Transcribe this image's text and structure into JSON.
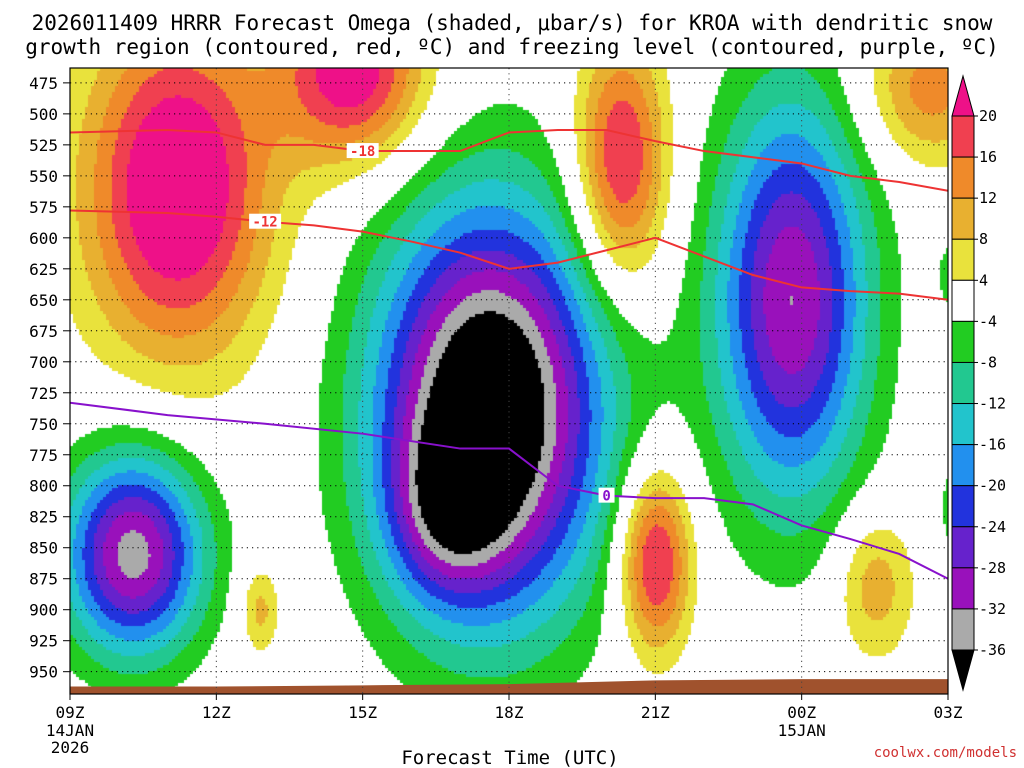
{
  "chart_data": {
    "type": "heatmap",
    "title": "2026011409 HRRR Forecast Omega (shaded, μbar/s) for KROA with dendritic snow growth region (contoured, red, ºC) and freezing level (contoured, purple, ºC)",
    "title_lines": [
      "2026011409 HRRR Forecast Omega (shaded, μbar/s) for KROA with dendritic snow",
      "growth region (contoured, red, ºC) and freezing level (contoured, purple, ºC)"
    ],
    "xlabel": "Forecast Time (UTC)",
    "ylabel": "",
    "credit": "coolwx.com/models",
    "x_ticks": [
      {
        "hour": 0,
        "label": "09Z",
        "sub": [
          "14JAN",
          "2026"
        ]
      },
      {
        "hour": 3,
        "label": "12Z",
        "sub": []
      },
      {
        "hour": 6,
        "label": "15Z",
        "sub": []
      },
      {
        "hour": 9,
        "label": "18Z",
        "sub": []
      },
      {
        "hour": 12,
        "label": "21Z",
        "sub": []
      },
      {
        "hour": 15,
        "label": "00Z",
        "sub": [
          "15JAN"
        ]
      },
      {
        "hour": 18,
        "label": "03Z",
        "sub": []
      }
    ],
    "xlim": [
      0,
      18
    ],
    "y_ticks": [
      475,
      500,
      525,
      550,
      575,
      600,
      625,
      650,
      675,
      700,
      725,
      750,
      775,
      800,
      825,
      850,
      875,
      900,
      925,
      950
    ],
    "ylim_hpa": [
      463,
      968
    ],
    "colorbar": {
      "labels": [
        "20",
        "16",
        "12",
        "8",
        "4",
        "-4",
        "-8",
        "-12",
        "-16",
        "-20",
        "-24",
        "-28",
        "-32",
        "-36"
      ],
      "bins": [
        {
          "lo": 20,
          "hi": 24,
          "color": "#ee1188"
        },
        {
          "lo": 16,
          "hi": 20,
          "color": "#f04050"
        },
        {
          "lo": 12,
          "hi": 16,
          "color": "#ef8a2a"
        },
        {
          "lo": 8,
          "hi": 12,
          "color": "#e8b030"
        },
        {
          "lo": 4,
          "hi": 8,
          "color": "#e9e23c"
        },
        {
          "lo": -4,
          "hi": 4,
          "color": "#ffffff"
        },
        {
          "lo": -8,
          "hi": -4,
          "color": "#22cc22"
        },
        {
          "lo": -12,
          "hi": -8,
          "color": "#22c890"
        },
        {
          "lo": -16,
          "hi": -12,
          "color": "#22c4cc"
        },
        {
          "lo": -20,
          "hi": -16,
          "color": "#2290ee"
        },
        {
          "lo": -24,
          "hi": -20,
          "color": "#2233dd"
        },
        {
          "lo": -28,
          "hi": -24,
          "color": "#6622cc"
        },
        {
          "lo": -32,
          "hi": -28,
          "color": "#9911bb"
        },
        {
          "lo": -36,
          "hi": -32,
          "color": "#aaaaaa"
        },
        {
          "lo": -999,
          "hi": -36,
          "color": "#000000"
        }
      ]
    },
    "omega_features": [
      {
        "name": "upward-core",
        "hour": 8.6,
        "hpa": 740,
        "rx_h": 3.4,
        "ry_hpa": 240,
        "peak": -46
      },
      {
        "name": "upward-core-lower",
        "hour": 7.7,
        "hpa": 820,
        "rx_h": 1.7,
        "ry_hpa": 100,
        "peak": -14
      },
      {
        "name": "upward-lower-left",
        "hour": 1.3,
        "hpa": 855,
        "rx_h": 2.1,
        "ry_hpa": 120,
        "peak": -34
      },
      {
        "name": "upward-evening",
        "hour": 14.8,
        "hpa": 650,
        "rx_h": 2.3,
        "ry_hpa": 240,
        "peak": -32
      },
      {
        "name": "upward-right-mid",
        "hour": 18.4,
        "hpa": 630,
        "rx_h": 1.0,
        "ry_hpa": 60,
        "peak": -7
      },
      {
        "name": "upward-right-low",
        "hour": 18.3,
        "hpa": 820,
        "rx_h": 0.8,
        "ry_hpa": 70,
        "peak": -7
      },
      {
        "name": "sinking-upper-left",
        "hour": 2.2,
        "hpa": 560,
        "rx_h": 2.8,
        "ry_hpa": 200,
        "peak": 27
      },
      {
        "name": "sinking-upper-mid",
        "hour": 5.8,
        "hpa": 465,
        "rx_h": 2.2,
        "ry_hpa": 110,
        "peak": 24
      },
      {
        "name": "sinking-upper-20z",
        "hour": 11.3,
        "hpa": 540,
        "rx_h": 1.4,
        "ry_hpa": 150,
        "peak": 22
      },
      {
        "name": "sinking-low-21z",
        "hour": 12.0,
        "hpa": 860,
        "rx_h": 1.1,
        "ry_hpa": 110,
        "peak": 23
      },
      {
        "name": "sinking-low-13z",
        "hour": 3.9,
        "hpa": 900,
        "rx_h": 0.6,
        "ry_hpa": 55,
        "peak": 10
      },
      {
        "name": "sinking-upper-right",
        "hour": 17.6,
        "hpa": 480,
        "rx_h": 2.0,
        "ry_hpa": 90,
        "peak": 14
      },
      {
        "name": "sinking-low-right",
        "hour": 16.5,
        "hpa": 880,
        "rx_h": 1.2,
        "ry_hpa": 90,
        "peak": 11
      }
    ],
    "dgz_contours": [
      {
        "label": "-18",
        "label_hour": 6.0,
        "color": "#ee3333",
        "hours": [
          0,
          2,
          3,
          4,
          5,
          6,
          7,
          8,
          9,
          10,
          11,
          12,
          13,
          14,
          15,
          16,
          17,
          18
        ],
        "hpa": [
          515,
          513,
          515,
          525,
          525,
          530,
          530,
          530,
          515,
          513,
          513,
          522,
          530,
          535,
          540,
          550,
          555,
          562
        ]
      },
      {
        "label": "-12",
        "label_hour": 4.0,
        "color": "#ee3333",
        "hours": [
          0,
          1,
          2,
          3,
          4,
          5,
          6,
          7,
          8,
          9,
          10,
          11,
          12,
          13,
          14,
          15,
          16,
          17,
          18
        ],
        "hpa": [
          578,
          579,
          580,
          583,
          587,
          590,
          595,
          603,
          612,
          625,
          620,
          610,
          600,
          615,
          630,
          640,
          643,
          645,
          650
        ]
      }
    ],
    "freezing_level": {
      "label": "0",
      "label_hour": 11.0,
      "color": "#8811cc",
      "hours": [
        0,
        2,
        4,
        6,
        8,
        9,
        10,
        11,
        12,
        13,
        14,
        15,
        16,
        17,
        18
      ],
      "hpa": [
        733,
        743,
        750,
        758,
        770,
        770,
        800,
        808,
        810,
        810,
        815,
        832,
        843,
        855,
        875
      ]
    },
    "terrain": {
      "color": "#a0522d",
      "hours": [
        0,
        3,
        6,
        9,
        12,
        15,
        18
      ],
      "hpa": [
        962,
        962,
        961,
        960,
        957,
        956,
        956
      ]
    }
  }
}
